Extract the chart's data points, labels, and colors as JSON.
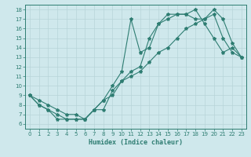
{
  "xlabel": "Humidex (Indice chaleur)",
  "bg_color": "#cfe8ec",
  "grid_color": "#b8d4d8",
  "line_color": "#2e7d72",
  "xlim": [
    -0.5,
    23.5
  ],
  "ylim": [
    5.5,
    18.5
  ],
  "xticks": [
    0,
    1,
    2,
    3,
    4,
    5,
    6,
    7,
    8,
    9,
    10,
    11,
    12,
    13,
    14,
    15,
    16,
    17,
    18,
    19,
    20,
    21,
    22,
    23
  ],
  "yticks": [
    6,
    7,
    8,
    9,
    10,
    11,
    12,
    13,
    14,
    15,
    16,
    17,
    18
  ],
  "line1_x": [
    0,
    1,
    2,
    3,
    4,
    5,
    6,
    7,
    8,
    9,
    10,
    11,
    12,
    13,
    14,
    15,
    16,
    17,
    18,
    19,
    20,
    21,
    22,
    23
  ],
  "line1_y": [
    9,
    8,
    7.5,
    7,
    6.5,
    6.5,
    6.5,
    7.5,
    8.5,
    9.0,
    10.5,
    11.0,
    11.5,
    12.5,
    13.5,
    14.0,
    15.0,
    16.0,
    16.5,
    17.0,
    18.0,
    17.0,
    14.5,
    13.0
  ],
  "line2_x": [
    0,
    1,
    2,
    3,
    4,
    5,
    6,
    7,
    8,
    9,
    10,
    11,
    12,
    13,
    14,
    15,
    16,
    17,
    18,
    19,
    20,
    21,
    22,
    23
  ],
  "line2_y": [
    9,
    8.5,
    8,
    7.5,
    7,
    7,
    6.5,
    7.5,
    8.5,
    10.0,
    11.5,
    17.0,
    13.5,
    14.0,
    16.5,
    17.5,
    17.5,
    17.5,
    17.0,
    17.0,
    17.5,
    15.0,
    13.5,
    13.0
  ],
  "line3_x": [
    0,
    1,
    2,
    3,
    4,
    5,
    6,
    7,
    8,
    9,
    10,
    11,
    12,
    13,
    14,
    15,
    16,
    17,
    18,
    19,
    20,
    21,
    22,
    23
  ],
  "line3_y": [
    9,
    8,
    7.5,
    6.5,
    6.5,
    6.5,
    6.5,
    7.5,
    7.5,
    9.5,
    10.5,
    11.5,
    12.0,
    15.0,
    16.5,
    17.0,
    17.5,
    17.5,
    18.0,
    16.5,
    15.0,
    13.5,
    14.0,
    13.0
  ]
}
